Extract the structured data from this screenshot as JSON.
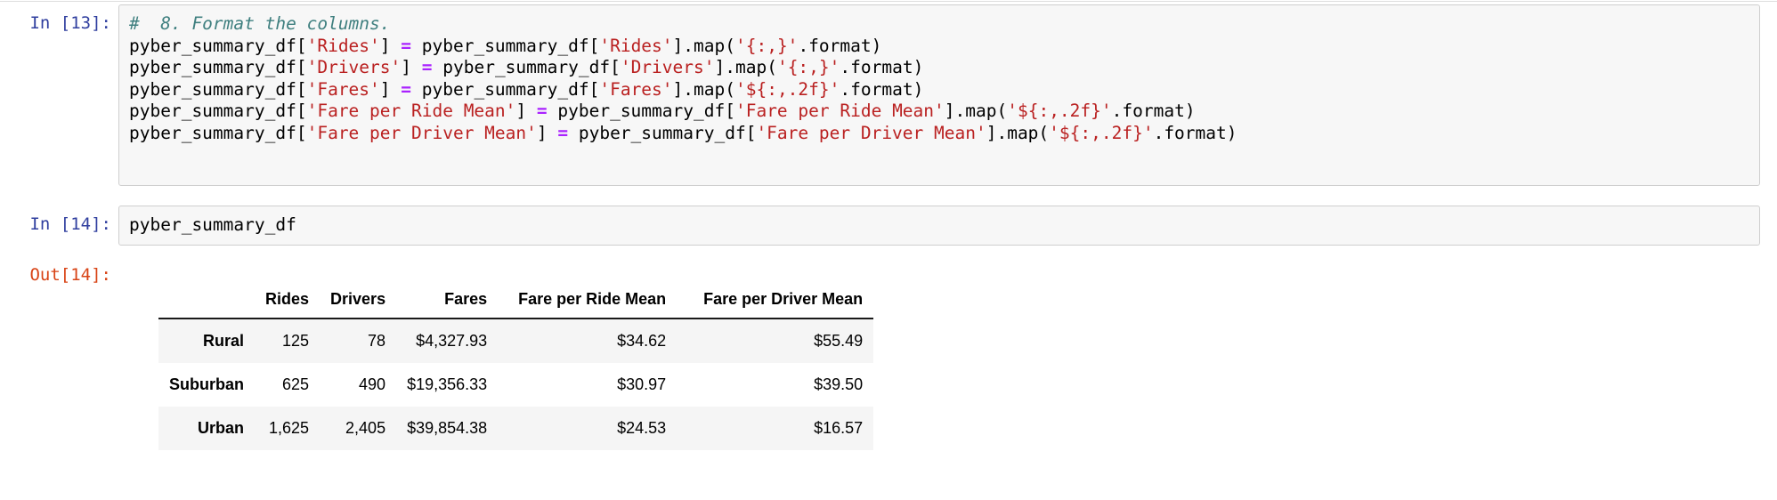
{
  "colors": {
    "prompt_in": "#303F9F",
    "prompt_out": "#D84315",
    "comment": "#408080",
    "string": "#BA2121",
    "operator": "#AA22FF",
    "cell_bg": "#F7F7F7",
    "cell_border": "#CFCFCF",
    "row_stripe": "#F5F5F5"
  },
  "cells": [
    {
      "prompt": "In [13]:",
      "lines": [
        [
          {
            "t": "#  8. Format the columns.",
            "s": "comment"
          }
        ],
        [
          {
            "t": "pyber_summary_df["
          },
          {
            "t": "'Rides'",
            "s": "string"
          },
          {
            "t": "] "
          },
          {
            "t": "=",
            "s": "operator"
          },
          {
            "t": " pyber_summary_df["
          },
          {
            "t": "'Rides'",
            "s": "string"
          },
          {
            "t": "].map("
          },
          {
            "t": "'{:,}'",
            "s": "string"
          },
          {
            "t": ".format)"
          }
        ],
        [
          {
            "t": "pyber_summary_df["
          },
          {
            "t": "'Drivers'",
            "s": "string"
          },
          {
            "t": "] "
          },
          {
            "t": "=",
            "s": "operator"
          },
          {
            "t": " pyber_summary_df["
          },
          {
            "t": "'Drivers'",
            "s": "string"
          },
          {
            "t": "].map("
          },
          {
            "t": "'{:,}'",
            "s": "string"
          },
          {
            "t": ".format)"
          }
        ],
        [
          {
            "t": "pyber_summary_df["
          },
          {
            "t": "'Fares'",
            "s": "string"
          },
          {
            "t": "] "
          },
          {
            "t": "=",
            "s": "operator"
          },
          {
            "t": " pyber_summary_df["
          },
          {
            "t": "'Fares'",
            "s": "string"
          },
          {
            "t": "].map("
          },
          {
            "t": "'${:,.2f}'",
            "s": "string"
          },
          {
            "t": ".format)"
          }
        ],
        [
          {
            "t": "pyber_summary_df["
          },
          {
            "t": "'Fare per Ride Mean'",
            "s": "string"
          },
          {
            "t": "] "
          },
          {
            "t": "=",
            "s": "operator"
          },
          {
            "t": " pyber_summary_df["
          },
          {
            "t": "'Fare per Ride Mean'",
            "s": "string"
          },
          {
            "t": "].map("
          },
          {
            "t": "'${:,.2f}'",
            "s": "string"
          },
          {
            "t": ".format)"
          }
        ],
        [
          {
            "t": "pyber_summary_df["
          },
          {
            "t": "'Fare per Driver Mean'",
            "s": "string"
          },
          {
            "t": "] "
          },
          {
            "t": "=",
            "s": "operator"
          },
          {
            "t": " pyber_summary_df["
          },
          {
            "t": "'Fare per Driver Mean'",
            "s": "string"
          },
          {
            "t": "].map("
          },
          {
            "t": "'${:,.2f}'",
            "s": "string"
          },
          {
            "t": ".format)"
          }
        ]
      ]
    },
    {
      "prompt": "In [14]:",
      "lines": [
        [
          {
            "t": "pyber_summary_df"
          }
        ]
      ]
    }
  ],
  "output": {
    "prompt": "Out[14]:",
    "table": {
      "columns": [
        "",
        "Rides",
        "Drivers",
        "Fares",
        "Fare per Ride Mean",
        "Fare per Driver Mean"
      ],
      "rows": [
        {
          "index": "Rural",
          "values": [
            "125",
            "78",
            "$4,327.93",
            "$34.62",
            "$55.49"
          ]
        },
        {
          "index": "Suburban",
          "values": [
            "625",
            "490",
            "$19,356.33",
            "$30.97",
            "$39.50"
          ]
        },
        {
          "index": "Urban",
          "values": [
            "1,625",
            "2,405",
            "$39,854.38",
            "$24.53",
            "$16.57"
          ]
        }
      ]
    }
  }
}
